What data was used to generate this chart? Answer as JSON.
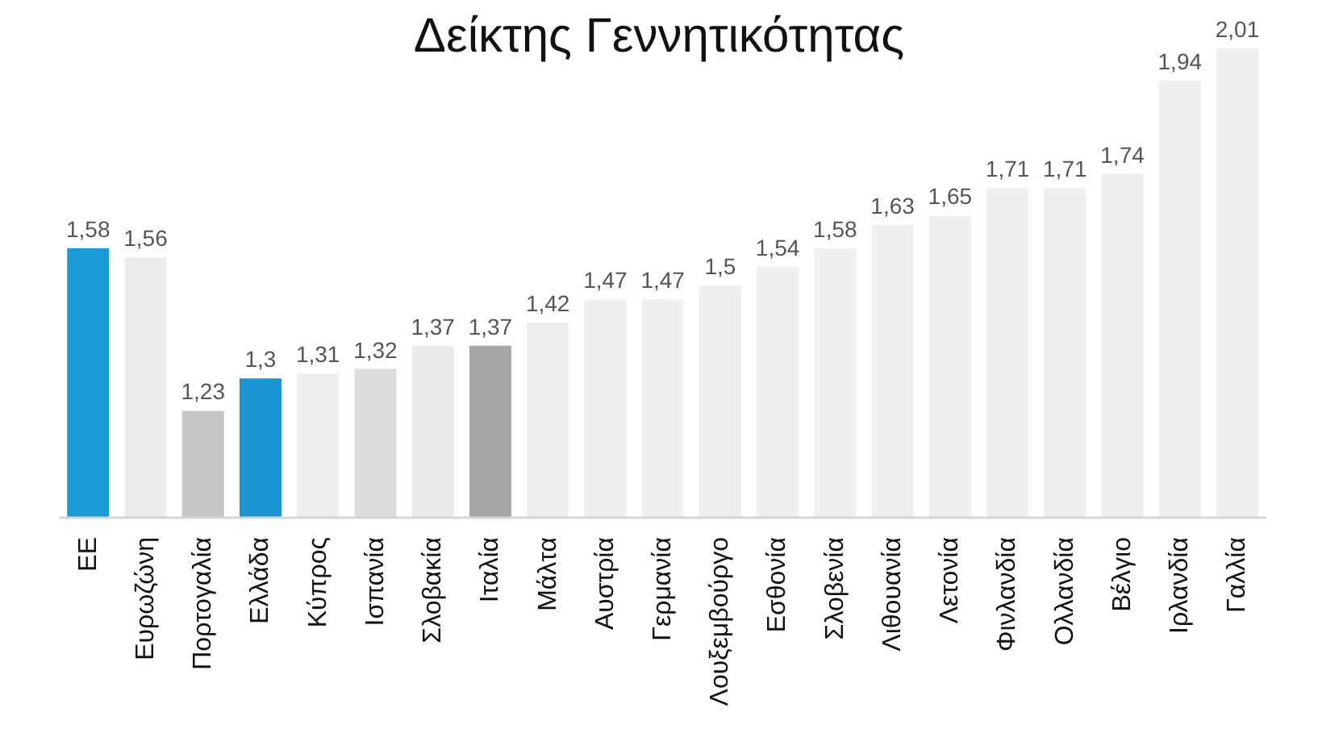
{
  "chart_data": {
    "type": "bar",
    "title": "Δείκτης Γεννητικότητας",
    "categories": [
      "ΕΕ",
      "Ευρωζώνη",
      "Πορτογαλία",
      "Ελλάδα",
      "Κύπρος",
      "Ισπανία",
      "Σλοβακία",
      "Ιταλία",
      "Μάλτα",
      "Αυστρία",
      "Γερμανία",
      "Λουξεμβούργο",
      "Εσθονία",
      "Σλοβενία",
      "Λιθουανία",
      "Λετονία",
      "Φινλανδία",
      "Ολλανδία",
      "Βέλγιο",
      "Ιρλανδία",
      "Γαλλία"
    ],
    "values": [
      1.58,
      1.56,
      1.23,
      1.3,
      1.31,
      1.32,
      1.37,
      1.37,
      1.42,
      1.47,
      1.47,
      1.5,
      1.54,
      1.58,
      1.63,
      1.65,
      1.71,
      1.71,
      1.74,
      1.94,
      2.01
    ],
    "value_labels": [
      "1,58",
      "1,56",
      "1,23",
      "1,3",
      "1,31",
      "1,32",
      "1,37",
      "1,37",
      "1,42",
      "1,47",
      "1,47",
      "1,5",
      "1,54",
      "1,58",
      "1,63",
      "1,65",
      "1,71",
      "1,71",
      "1,74",
      "1,94",
      "2,01"
    ],
    "colors": [
      "#1a9ad6",
      "#ececec",
      "#c6c6c6",
      "#1a96d4",
      "#eeeeee",
      "#dddddd",
      "#eaeaea",
      "#a6a6a6",
      "#efefef",
      "#efefef",
      "#efefef",
      "#efefef",
      "#efefef",
      "#efefef",
      "#efefef",
      "#efefef",
      "#efefef",
      "#efefef",
      "#efefef",
      "#efefef",
      "#efefef"
    ],
    "ylim": [
      1,
      2.01
    ],
    "tick_labels": "x"
  }
}
